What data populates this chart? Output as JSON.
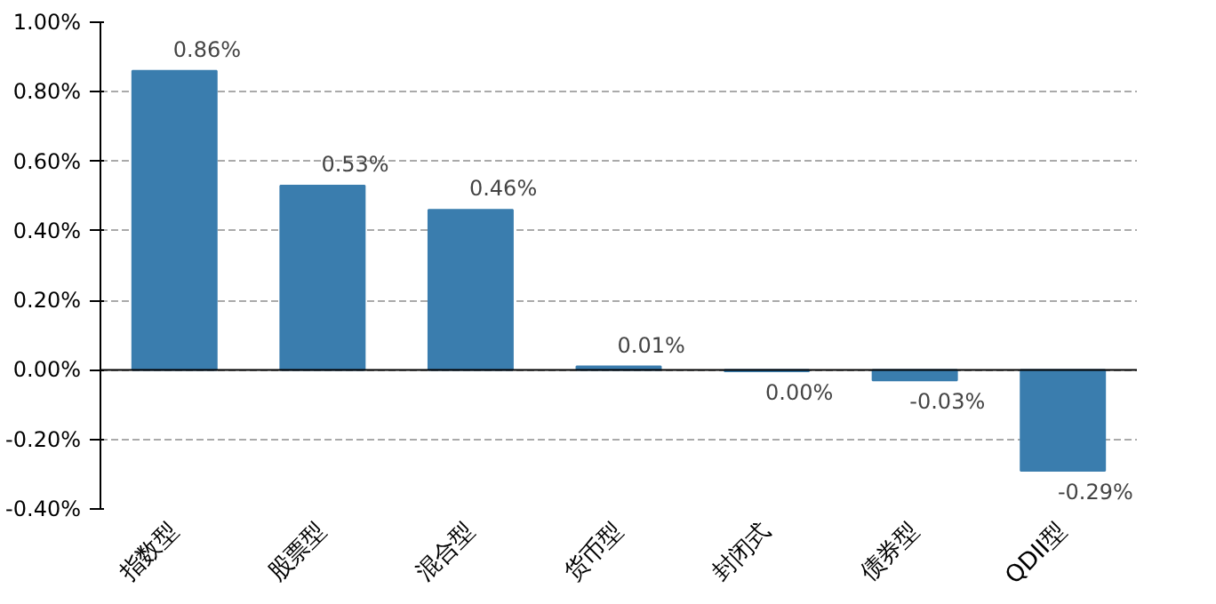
{
  "chart_data": {
    "type": "bar",
    "categories": [
      "指数型",
      "股票型",
      "混合型",
      "货币型",
      "封闭式",
      "债券型",
      "QDII型"
    ],
    "values": [
      0.86,
      0.53,
      0.46,
      0.01,
      -0.004,
      -0.03,
      -0.29
    ],
    "value_labels": [
      "0.86%",
      "0.53%",
      "0.46%",
      "0.01%",
      "0.00%",
      "-0.03%",
      "-0.29%"
    ],
    "color": "#3a7dae",
    "ylim": [
      -0.4,
      1.0
    ],
    "yticks": [
      {
        "value": -0.4,
        "label": "-0.40%"
      },
      {
        "value": -0.2,
        "label": "-0.20%"
      },
      {
        "value": 0,
        "label": "0.00%"
      },
      {
        "value": 0.2,
        "label": "0.20%"
      },
      {
        "value": 0.4,
        "label": "0.40%"
      },
      {
        "value": 0.6,
        "label": "0.60%"
      },
      {
        "value": 0.8,
        "label": "0.80%"
      },
      {
        "value": 1.0,
        "label": "1.00%"
      }
    ],
    "grid": "y"
  }
}
